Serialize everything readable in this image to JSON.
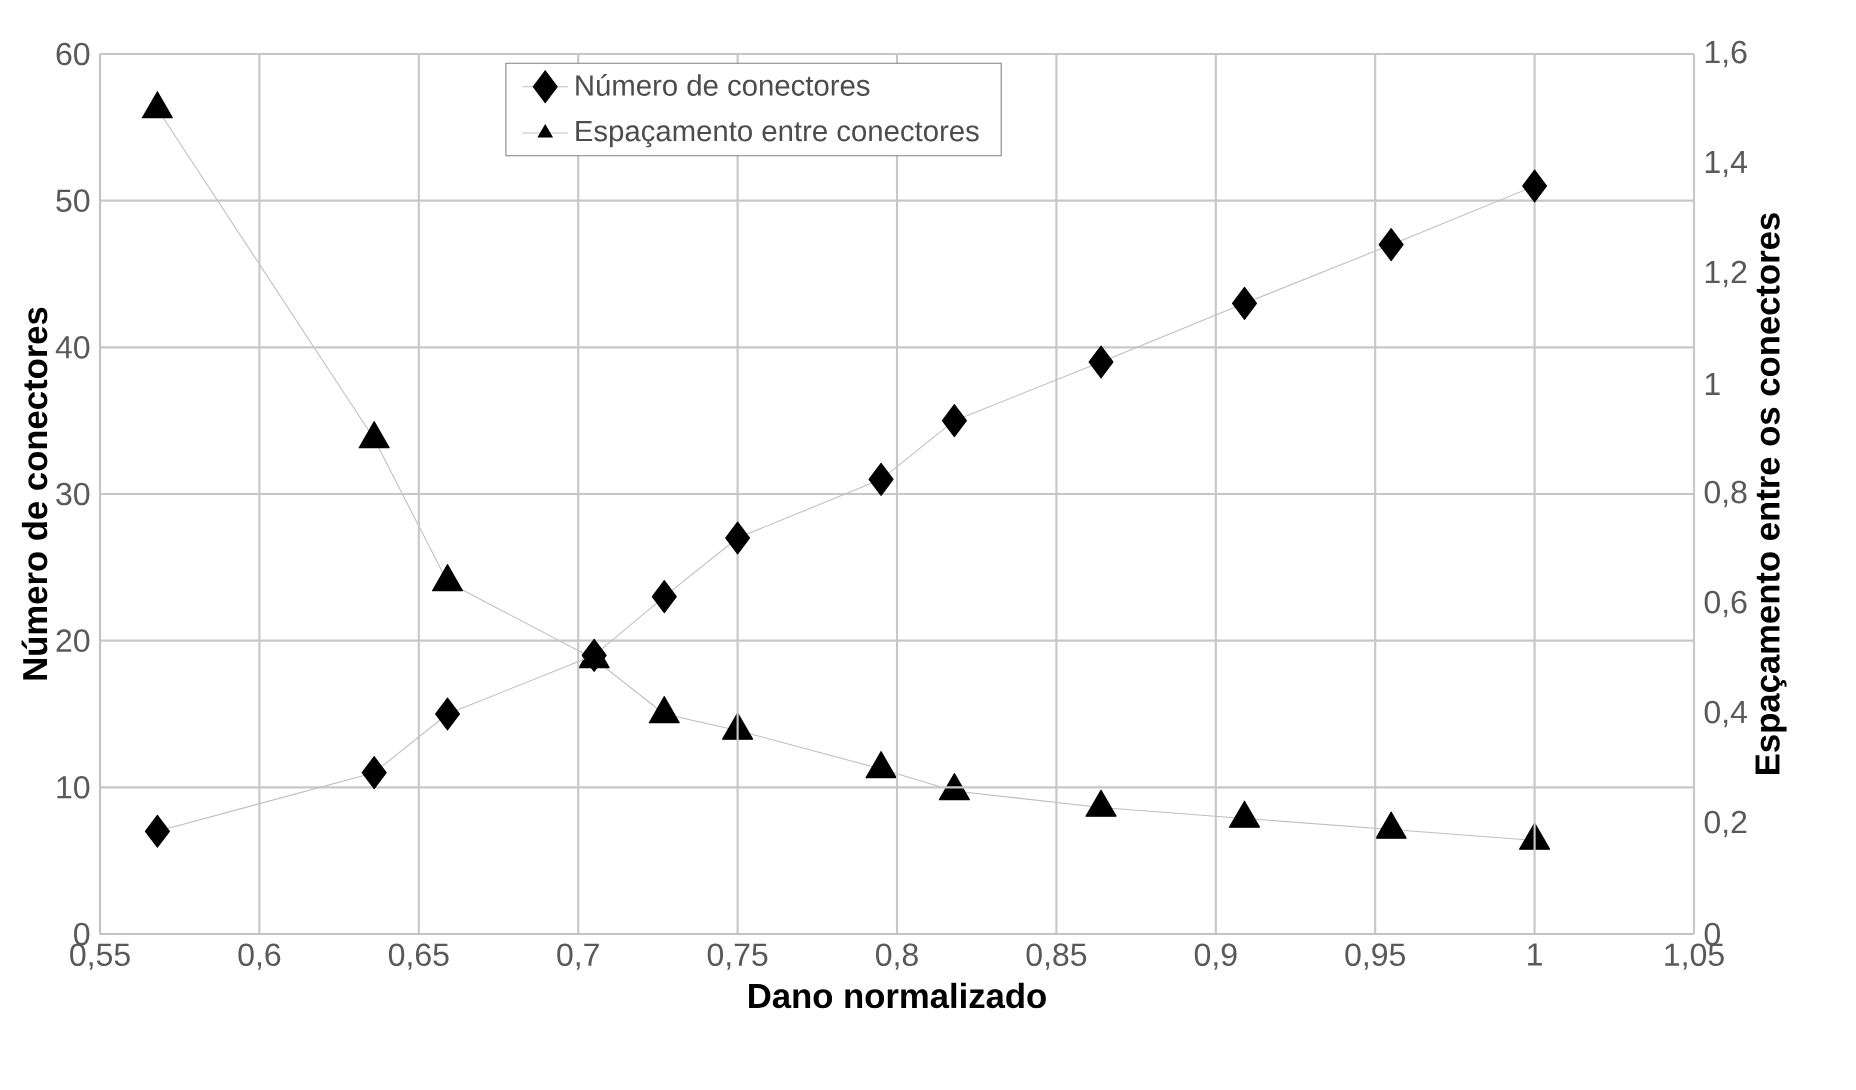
{
  "chart_data": {
    "type": "line",
    "xlabel": "Dano normalizado",
    "ylabel": "Número de conectores",
    "y2label": "Espaçamento entre os conectores",
    "xlim": [
      0.55,
      1.05
    ],
    "xticks": [
      {
        "value": 0.55,
        "label": "0,55"
      },
      {
        "value": 0.6,
        "label": "0,6"
      },
      {
        "value": 0.65,
        "label": "0,65"
      },
      {
        "value": 0.7,
        "label": "0,7"
      },
      {
        "value": 0.75,
        "label": "0,75"
      },
      {
        "value": 0.8,
        "label": "0,8"
      },
      {
        "value": 0.85,
        "label": "0,85"
      },
      {
        "value": 0.9,
        "label": "0,9"
      },
      {
        "value": 0.95,
        "label": "0,95"
      },
      {
        "value": 1,
        "label": "1"
      },
      {
        "value": 1.05,
        "label": "1,05"
      }
    ],
    "ylim": [
      0,
      60
    ],
    "yticks": [
      0,
      10,
      20,
      30,
      40,
      50,
      60
    ],
    "y2lim": [
      0,
      1.6
    ],
    "y2ticks": [
      0,
      {
        "value": 0.2,
        "label": "0,2"
      },
      {
        "value": 0.4,
        "label": "0,4"
      },
      {
        "value": 0.6,
        "label": "0,6"
      },
      {
        "value": 0.8,
        "label": "0,8"
      },
      1,
      {
        "value": 1.2,
        "label": "1,2"
      },
      {
        "value": 1.4,
        "label": "1,4"
      },
      {
        "value": 1.6,
        "label": "1,6"
      }
    ],
    "x": [
      0.568,
      0.636,
      0.659,
      0.705,
      0.727,
      0.75,
      0.795,
      0.818,
      0.864,
      0.909,
      0.955,
      1.0
    ],
    "series": [
      {
        "name": "Número de conectores",
        "color": "#000000",
        "marker": "diamond",
        "values": [
          7,
          11,
          15,
          19,
          23,
          27,
          31,
          35,
          39,
          43,
          47,
          51
        ]
      },
      {
        "name": "Espaçamento entre conectores",
        "color": "#000000",
        "marker": "triangle",
        "axis": "y2",
        "values": [
          1.5,
          0.9,
          0.64,
          0.5,
          0.4,
          0.37,
          0.3,
          0.26,
          0.23,
          0.21,
          0.19,
          0.17
        ]
      }
    ],
    "grid": true,
    "legend": "top",
    "line_style": "solid"
  }
}
